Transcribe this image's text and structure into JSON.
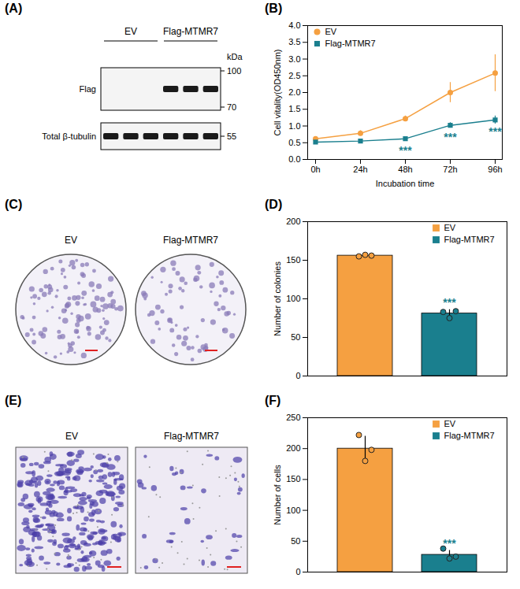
{
  "chart_data": [
    {
      "panel": "(B)",
      "type": "line",
      "xlabel": "Incubation time",
      "ylabel": "Cell vitality(OD450nm)",
      "x": [
        "0h",
        "24h",
        "48h",
        "72h",
        "96h"
      ],
      "series": [
        {
          "name": "EV",
          "color": "#F5A041",
          "marker": "circle",
          "values": [
            0.62,
            0.78,
            1.22,
            2.0,
            2.58
          ],
          "errors": [
            0.05,
            0.08,
            0.08,
            0.3,
            0.55
          ]
        },
        {
          "name": "Flag-MTMR7",
          "color": "#1A7F8E",
          "marker": "square",
          "values": [
            0.52,
            0.55,
            0.62,
            1.02,
            1.18
          ],
          "errors": [
            0.03,
            0.03,
            0.04,
            0.08,
            0.12
          ]
        }
      ],
      "ylim": [
        0,
        4
      ],
      "yticks": [
        {
          "value": 0,
          "label": "0.0"
        },
        {
          "value": 0.5,
          "label": "0.5"
        },
        {
          "value": 1,
          "label": "1.0"
        },
        {
          "value": 1.5,
          "label": "1.5"
        },
        {
          "value": 2,
          "label": "2.0"
        },
        {
          "value": 2.5,
          "label": "2.5"
        },
        {
          "value": 3,
          "label": "3.0"
        },
        {
          "value": 3.5,
          "label": "3.5"
        },
        {
          "value": 4,
          "label": "4.0"
        }
      ],
      "annotations": [
        {
          "series": "Flag-MTMR7",
          "x": "48h",
          "text": "***"
        },
        {
          "series": "Flag-MTMR7",
          "x": "72h",
          "text": "***"
        },
        {
          "series": "Flag-MTMR7",
          "x": "96h",
          "text": "***"
        }
      ],
      "legend": "top-left"
    },
    {
      "panel": "(D)",
      "type": "bar",
      "ylabel": "Number of colonies",
      "categories": [
        "EV",
        "Flag-MTMR7"
      ],
      "values": [
        156,
        81
      ],
      "errors": [
        2,
        5
      ],
      "points": [
        [
          155,
          157,
          156
        ],
        [
          83,
          75,
          84
        ]
      ],
      "colors": [
        "#F5A041",
        "#1A7F8E"
      ],
      "ylim": [
        0,
        200
      ],
      "yticks": [
        0,
        50,
        100,
        150,
        200
      ],
      "tick_labels": "y",
      "legend": "top-right",
      "annotations": [
        {
          "category": "Flag-MTMR7",
          "text": "***"
        }
      ]
    },
    {
      "panel": "(F)",
      "type": "bar",
      "ylabel": "Number of cells",
      "categories": [
        "EV",
        "Flag-MTMR7"
      ],
      "values": [
        200,
        28
      ],
      "errors": [
        20,
        7
      ],
      "points": [
        [
          222,
          180,
          198
        ],
        [
          38,
          22,
          25
        ]
      ],
      "colors": [
        "#F5A041",
        "#1A7F8E"
      ],
      "ylim": [
        0,
        250
      ],
      "yticks": [
        0,
        50,
        100,
        150,
        200,
        250
      ],
      "tick_labels": "y",
      "legend": "top-right",
      "annotations": [
        {
          "category": "Flag-MTMR7",
          "text": "***"
        }
      ]
    }
  ],
  "panels": {
    "A": {
      "panel": "(A)",
      "lanes": [
        "EV",
        "Flag-MTMR7"
      ],
      "mw_unit": "kDa",
      "rows": [
        {
          "label": "Flag",
          "markers": [
            100,
            70
          ]
        },
        {
          "label": "Total β-tubulin",
          "markers": [
            55
          ]
        }
      ],
      "bands": [
        [
          0,
          0,
          0,
          1,
          1,
          1
        ],
        [
          1,
          1,
          1,
          1,
          1,
          1
        ]
      ]
    },
    "C": {
      "panel": "(C)",
      "images": [
        "EV",
        "Flag-MTMR7"
      ]
    },
    "E": {
      "panel": "(E)",
      "images": [
        "EV",
        "Flag-MTMR7"
      ]
    }
  }
}
